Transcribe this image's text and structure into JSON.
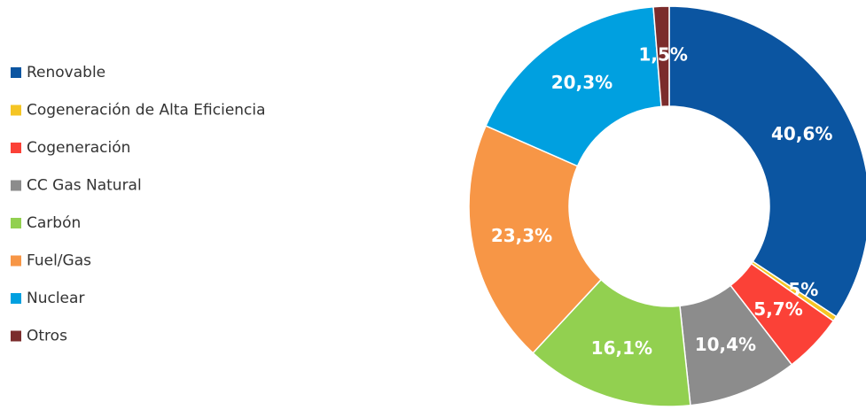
{
  "chart_data": {
    "type": "donut",
    "categories": [
      "Renovable",
      "Cogeneración de Alta Eficiencia",
      "Cogeneración",
      "CC Gas Natural",
      "Carbón",
      "Fuel/Gas",
      "Nuclear",
      "Otros"
    ],
    "values": [
      40.6,
      0.5,
      5.7,
      10.4,
      16.1,
      23.3,
      20.3,
      1.5
    ],
    "value_labels": [
      "40,6%",
      "0,5%",
      "5,7%",
      "10,4%",
      "16,1%",
      "23,3%",
      "20,3%",
      "1,5%"
    ],
    "colors": [
      "#0b55a1",
      "#f5c524",
      "#fb4137",
      "#8c8c8c",
      "#92d050",
      "#f79646",
      "#00a0e0",
      "#7b2c2c"
    ],
    "legend": "left"
  }
}
